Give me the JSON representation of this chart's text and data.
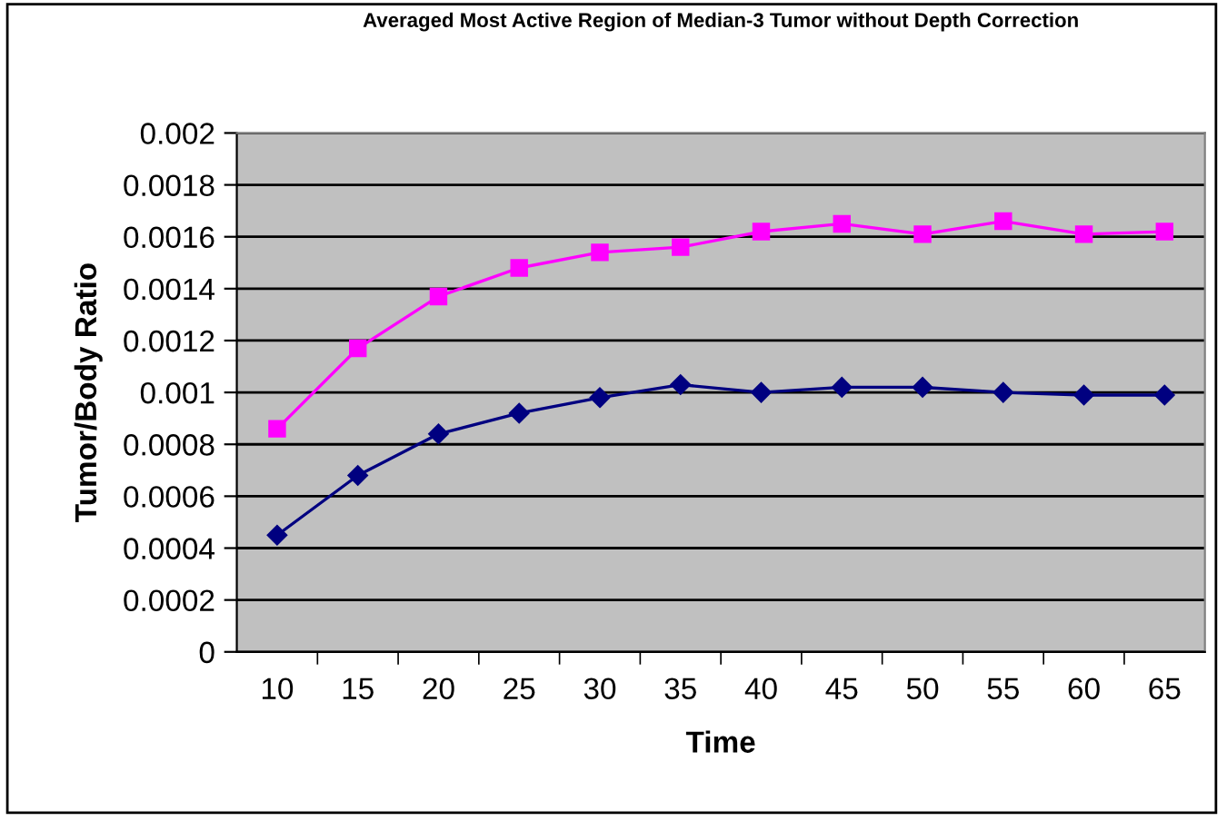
{
  "chart_data": {
    "type": "line",
    "title": "Averaged Most Active Region of Median-3 Tumor without Depth Correction",
    "xlabel": "Time",
    "ylabel": "Tumor/Body Ratio",
    "categories": [
      "10",
      "15",
      "20",
      "25",
      "30",
      "35",
      "40",
      "45",
      "50",
      "55",
      "60",
      "65"
    ],
    "series": [
      {
        "color": "#ff00ff",
        "marker": "square",
        "values": [
          0.00086,
          0.00117,
          0.00137,
          0.00148,
          0.00154,
          0.00156,
          0.00162,
          0.00165,
          0.00161,
          0.00166,
          0.00161,
          0.00162
        ]
      },
      {
        "color": "#000080",
        "marker": "diamond",
        "values": [
          0.00045,
          0.00068,
          0.00084,
          0.00092,
          0.00098,
          0.00103,
          0.001,
          0.00102,
          0.00102,
          0.001,
          0.00099,
          0.00099
        ]
      }
    ],
    "ylim": [
      0,
      0.002
    ],
    "yticks": [
      0,
      0.0002,
      0.0004,
      0.0006,
      0.0008,
      0.001,
      0.0012,
      0.0014,
      0.0016,
      0.0018,
      0.002
    ],
    "grid": "y",
    "legend": false
  }
}
